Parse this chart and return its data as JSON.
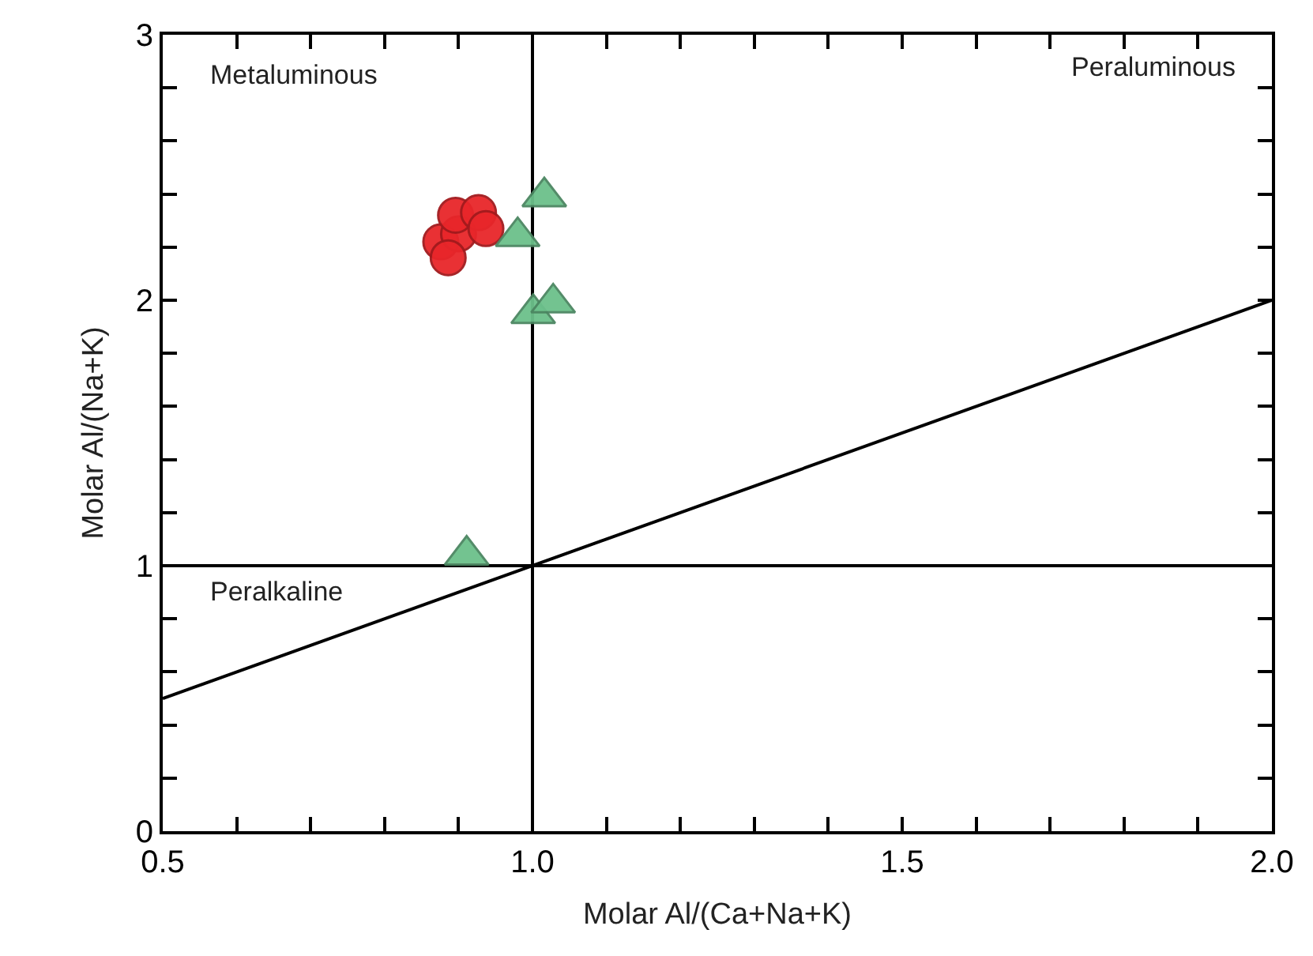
{
  "chart_data": {
    "type": "scatter",
    "xlabel": "Molar Al/(Ca+Na+K)",
    "ylabel": "Molar Al/(Na+K)",
    "xlim": [
      0.5,
      2.0
    ],
    "ylim": [
      0,
      3
    ],
    "xticks": [
      {
        "value": 0.5,
        "label": "0.5"
      },
      {
        "value": 0.6,
        "label": null
      },
      {
        "value": 0.7,
        "label": null
      },
      {
        "value": 0.8,
        "label": null
      },
      {
        "value": 0.9,
        "label": null
      },
      {
        "value": 1.0,
        "label": "1.0"
      },
      {
        "value": 1.1,
        "label": null
      },
      {
        "value": 1.2,
        "label": null
      },
      {
        "value": 1.3,
        "label": null
      },
      {
        "value": 1.4,
        "label": null
      },
      {
        "value": 1.5,
        "label": "1.5"
      },
      {
        "value": 1.6,
        "label": null
      },
      {
        "value": 1.7,
        "label": null
      },
      {
        "value": 1.8,
        "label": null
      },
      {
        "value": 1.9,
        "label": null
      },
      {
        "value": 2.0,
        "label": "2.0"
      }
    ],
    "yticks": [
      0,
      {
        "value": 0.2,
        "label": null
      },
      {
        "value": 0.4,
        "label": null
      },
      {
        "value": 0.6,
        "label": null
      },
      {
        "value": 0.8,
        "label": null
      },
      1,
      {
        "value": 1.2,
        "label": null
      },
      {
        "value": 1.4,
        "label": null
      },
      {
        "value": 1.6,
        "label": null
      },
      {
        "value": 1.8,
        "label": null
      },
      2,
      {
        "value": 2.2,
        "label": null
      },
      {
        "value": 2.4,
        "label": null
      },
      {
        "value": 2.6,
        "label": null
      },
      {
        "value": 2.8,
        "label": null
      },
      3
    ],
    "grid": false,
    "annotations": [
      "Metaluminous",
      "Peraluminous",
      "Peralkaline"
    ],
    "series": [
      {
        "type": "line",
        "x": [
          0.5,
          2.0
        ],
        "values": [
          0.5,
          2.0
        ],
        "color": "#000000",
        "marker": "none",
        "line_style": "solid"
      },
      {
        "type": "line",
        "x": [
          0.5,
          2.0
        ],
        "values": [
          1,
          1
        ],
        "color": "#000000",
        "marker": "none",
        "line_style": "solid"
      },
      {
        "type": "line",
        "x": [
          1,
          1
        ],
        "values": [
          0,
          3
        ],
        "color": "#000000",
        "marker": "none",
        "line_style": "solid"
      },
      {
        "x": [
          0.876,
          0.9,
          0.896,
          0.927,
          0.937,
          0.886
        ],
        "values": [
          2.22,
          2.25,
          2.32,
          2.33,
          2.27,
          2.16
        ],
        "color": "#e8262a",
        "marker": "circle"
      },
      {
        "x": [
          1.016,
          0.98,
          1.001,
          1.028,
          0.911
        ],
        "values": [
          2.39,
          2.24,
          1.95,
          1.99,
          1.04
        ],
        "color": "#6cc08b",
        "marker": "triangle"
      }
    ]
  }
}
